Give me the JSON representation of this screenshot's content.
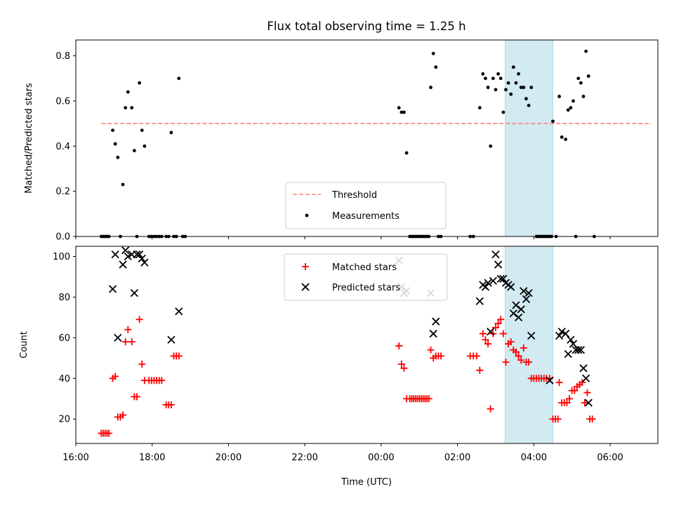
{
  "title": "Flux total observing time = 1.25 h",
  "xlabel": "Time (UTC)",
  "x_tick_labels": [
    "16:00",
    "18:00",
    "20:00",
    "22:00",
    "00:00",
    "02:00",
    "04:00",
    "06:00"
  ],
  "colors": {
    "threshold": "#ff7f7f",
    "measurements": "#000000",
    "matched": "#ff0000",
    "predicted": "#000000",
    "highlight": "#add8e6"
  },
  "chart_data": [
    {
      "type": "scatter",
      "ylabel": "Matched/Predicted stars",
      "ylim": [
        0,
        0.87
      ],
      "y_ticks": [
        0.0,
        0.2,
        0.4,
        0.6,
        0.8
      ],
      "y_tick_labels": [
        "0.0",
        "0.2",
        "0.4",
        "0.6",
        "0.8"
      ],
      "x_range": [
        "16:00",
        "07:15"
      ],
      "highlight_span": [
        "03:15",
        "04:30"
      ],
      "legend_position": "lower-center",
      "threshold": {
        "name": "Threshold",
        "value": 0.5,
        "x": [
          "16:40",
          "07:05"
        ],
        "style": "dashed"
      },
      "series": [
        {
          "name": "Measurements",
          "points": [
            [
              "16:40",
              0
            ],
            [
              "16:43",
              0
            ],
            [
              "16:46",
              0
            ],
            [
              "16:49",
              0
            ],
            [
              "16:52",
              0
            ],
            [
              "16:58",
              0.47
            ],
            [
              "17:02",
              0.41
            ],
            [
              "17:06",
              0.35
            ],
            [
              "17:10",
              0
            ],
            [
              "17:14",
              0.23
            ],
            [
              "17:18",
              0.57
            ],
            [
              "17:22",
              0.64
            ],
            [
              "17:28",
              0.57
            ],
            [
              "17:32",
              0.38
            ],
            [
              "17:36",
              0
            ],
            [
              "17:40",
              0.68
            ],
            [
              "17:44",
              0.47
            ],
            [
              "17:48",
              0.4
            ],
            [
              "17:55",
              0
            ],
            [
              "17:59",
              0
            ],
            [
              "18:03",
              0
            ],
            [
              "18:07",
              0
            ],
            [
              "18:11",
              0
            ],
            [
              "18:15",
              0
            ],
            [
              "18:22",
              0
            ],
            [
              "18:26",
              0
            ],
            [
              "18:30",
              0.46
            ],
            [
              "18:34",
              0
            ],
            [
              "18:38",
              0
            ],
            [
              "18:42",
              0.7
            ],
            [
              "18:48",
              0
            ],
            [
              "18:52",
              0
            ],
            [
              "00:28",
              0.57
            ],
            [
              "00:32",
              0.55
            ],
            [
              "00:36",
              0.55
            ],
            [
              "00:40",
              0.37
            ],
            [
              "00:45",
              0
            ],
            [
              "00:48",
              0
            ],
            [
              "00:51",
              0
            ],
            [
              "00:54",
              0
            ],
            [
              "00:57",
              0
            ],
            [
              "01:00",
              0
            ],
            [
              "01:03",
              0
            ],
            [
              "01:06",
              0
            ],
            [
              "01:09",
              0
            ],
            [
              "01:12",
              0
            ],
            [
              "01:15",
              0
            ],
            [
              "01:18",
              0.66
            ],
            [
              "01:22",
              0.81
            ],
            [
              "01:26",
              0.75
            ],
            [
              "01:30",
              0
            ],
            [
              "01:34",
              0
            ],
            [
              "02:20",
              0
            ],
            [
              "02:25",
              0
            ],
            [
              "02:35",
              0.57
            ],
            [
              "02:40",
              0.72
            ],
            [
              "02:44",
              0.7
            ],
            [
              "02:48",
              0.66
            ],
            [
              "02:52",
              0.4
            ],
            [
              "02:56",
              0.7
            ],
            [
              "03:00",
              0.65
            ],
            [
              "03:04",
              0.72
            ],
            [
              "03:08",
              0.7
            ],
            [
              "03:12",
              0.55
            ],
            [
              "03:16",
              0.65
            ],
            [
              "03:20",
              0.68
            ],
            [
              "03:24",
              0.63
            ],
            [
              "03:28",
              0.75
            ],
            [
              "03:32",
              0.68
            ],
            [
              "03:36",
              0.72
            ],
            [
              "03:40",
              0.66
            ],
            [
              "03:44",
              0.66
            ],
            [
              "03:48",
              0.61
            ],
            [
              "03:52",
              0.58
            ],
            [
              "03:56",
              0.66
            ],
            [
              "04:04",
              0
            ],
            [
              "04:07",
              0
            ],
            [
              "04:10",
              0
            ],
            [
              "04:13",
              0
            ],
            [
              "04:16",
              0
            ],
            [
              "04:19",
              0
            ],
            [
              "04:22",
              0
            ],
            [
              "04:25",
              0
            ],
            [
              "04:28",
              0
            ],
            [
              "04:30",
              0.51
            ],
            [
              "04:35",
              0
            ],
            [
              "04:40",
              0.62
            ],
            [
              "04:44",
              0.44
            ],
            [
              "04:50",
              0.43
            ],
            [
              "04:54",
              0.56
            ],
            [
              "04:58",
              0.57
            ],
            [
              "05:02",
              0.6
            ],
            [
              "05:06",
              0
            ],
            [
              "05:10",
              0.7
            ],
            [
              "05:14",
              0.68
            ],
            [
              "05:18",
              0.62
            ],
            [
              "05:22",
              0.82
            ],
            [
              "05:26",
              0.71
            ],
            [
              "05:35",
              0
            ]
          ]
        }
      ]
    },
    {
      "type": "scatter",
      "ylabel": "Count",
      "ylim": [
        8,
        105
      ],
      "y_ticks": [
        20,
        40,
        60,
        80,
        100
      ],
      "y_tick_labels": [
        "20",
        "40",
        "60",
        "80",
        "100"
      ],
      "x_range": [
        "16:00",
        "07:15"
      ],
      "highlight_span": [
        "03:15",
        "04:30"
      ],
      "legend_position": "upper-center",
      "series": [
        {
          "name": "Matched stars",
          "marker": "+",
          "points": [
            [
              "16:40",
              13
            ],
            [
              "16:43",
              13
            ],
            [
              "16:46",
              13
            ],
            [
              "16:49",
              13
            ],
            [
              "16:52",
              13
            ],
            [
              "16:58",
              40
            ],
            [
              "17:02",
              41
            ],
            [
              "17:06",
              21
            ],
            [
              "17:10",
              21
            ],
            [
              "17:14",
              22
            ],
            [
              "17:18",
              58
            ],
            [
              "17:22",
              64
            ],
            [
              "17:28",
              58
            ],
            [
              "17:32",
              31
            ],
            [
              "17:36",
              31
            ],
            [
              "17:40",
              69
            ],
            [
              "17:44",
              47
            ],
            [
              "17:48",
              39
            ],
            [
              "17:55",
              39
            ],
            [
              "17:59",
              39
            ],
            [
              "18:03",
              39
            ],
            [
              "18:07",
              39
            ],
            [
              "18:11",
              39
            ],
            [
              "18:15",
              39
            ],
            [
              "18:22",
              27
            ],
            [
              "18:26",
              27
            ],
            [
              "18:30",
              27
            ],
            [
              "18:34",
              51
            ],
            [
              "18:38",
              51
            ],
            [
              "18:42",
              51
            ],
            [
              "00:28",
              56
            ],
            [
              "00:32",
              47
            ],
            [
              "00:36",
              45
            ],
            [
              "00:40",
              30
            ],
            [
              "00:45",
              30
            ],
            [
              "00:48",
              30
            ],
            [
              "00:51",
              30
            ],
            [
              "00:54",
              30
            ],
            [
              "00:57",
              30
            ],
            [
              "01:00",
              30
            ],
            [
              "01:03",
              30
            ],
            [
              "01:06",
              30
            ],
            [
              "01:09",
              30
            ],
            [
              "01:12",
              30
            ],
            [
              "01:15",
              30
            ],
            [
              "01:18",
              54
            ],
            [
              "01:22",
              50
            ],
            [
              "01:26",
              51
            ],
            [
              "01:30",
              51
            ],
            [
              "01:34",
              51
            ],
            [
              "02:20",
              51
            ],
            [
              "02:25",
              51
            ],
            [
              "02:30",
              51
            ],
            [
              "02:35",
              44
            ],
            [
              "02:40",
              62
            ],
            [
              "02:44",
              59
            ],
            [
              "02:48",
              57
            ],
            [
              "02:52",
              25
            ],
            [
              "02:56",
              62
            ],
            [
              "03:00",
              65
            ],
            [
              "03:04",
              67
            ],
            [
              "03:08",
              69
            ],
            [
              "03:12",
              62
            ],
            [
              "03:16",
              48
            ],
            [
              "03:20",
              57
            ],
            [
              "03:24",
              58
            ],
            [
              "03:28",
              54
            ],
            [
              "03:32",
              53
            ],
            [
              "03:36",
              51
            ],
            [
              "03:40",
              49
            ],
            [
              "03:44",
              55
            ],
            [
              "03:48",
              48
            ],
            [
              "03:52",
              48
            ],
            [
              "03:56",
              40
            ],
            [
              "04:00",
              40
            ],
            [
              "04:04",
              40
            ],
            [
              "04:08",
              40
            ],
            [
              "04:12",
              40
            ],
            [
              "04:16",
              40
            ],
            [
              "04:20",
              40
            ],
            [
              "04:25",
              40
            ],
            [
              "04:30",
              20
            ],
            [
              "04:34",
              20
            ],
            [
              "04:38",
              20
            ],
            [
              "04:40",
              38
            ],
            [
              "04:44",
              28
            ],
            [
              "04:48",
              28
            ],
            [
              "04:52",
              28
            ],
            [
              "04:56",
              30
            ],
            [
              "05:00",
              34
            ],
            [
              "05:04",
              34
            ],
            [
              "05:08",
              36
            ],
            [
              "05:12",
              37
            ],
            [
              "05:16",
              38
            ],
            [
              "05:20",
              28
            ],
            [
              "05:24",
              33
            ],
            [
              "05:28",
              20
            ],
            [
              "05:32",
              20
            ]
          ]
        },
        {
          "name": "Predicted stars",
          "marker": "x",
          "points": [
            [
              "16:58",
              84
            ],
            [
              "17:02",
              101
            ],
            [
              "17:06",
              60
            ],
            [
              "17:14",
              96
            ],
            [
              "17:18",
              103
            ],
            [
              "17:22",
              100
            ],
            [
              "17:28",
              101
            ],
            [
              "17:32",
              82
            ],
            [
              "17:36",
              101
            ],
            [
              "17:40",
              101
            ],
            [
              "17:44",
              99
            ],
            [
              "17:48",
              97
            ],
            [
              "18:30",
              59
            ],
            [
              "18:42",
              73
            ],
            [
              "00:28",
              98
            ],
            [
              "00:32",
              85
            ],
            [
              "00:36",
              82
            ],
            [
              "00:40",
              83
            ],
            [
              "01:18",
              82
            ],
            [
              "01:22",
              62
            ],
            [
              "01:26",
              68
            ],
            [
              "02:35",
              78
            ],
            [
              "02:40",
              86
            ],
            [
              "02:44",
              85
            ],
            [
              "02:48",
              87
            ],
            [
              "02:52",
              63
            ],
            [
              "02:56",
              88
            ],
            [
              "03:00",
              101
            ],
            [
              "03:04",
              96
            ],
            [
              "03:08",
              89
            ],
            [
              "03:12",
              89
            ],
            [
              "03:16",
              87
            ],
            [
              "03:20",
              86
            ],
            [
              "03:24",
              85
            ],
            [
              "03:28",
              72
            ],
            [
              "03:32",
              76
            ],
            [
              "03:36",
              70
            ],
            [
              "03:40",
              74
            ],
            [
              "03:44",
              83
            ],
            [
              "03:48",
              79
            ],
            [
              "03:52",
              82
            ],
            [
              "03:56",
              61
            ],
            [
              "04:25",
              39
            ],
            [
              "04:40",
              61
            ],
            [
              "04:44",
              63
            ],
            [
              "04:50",
              62
            ],
            [
              "04:54",
              52
            ],
            [
              "04:58",
              59
            ],
            [
              "05:02",
              57
            ],
            [
              "05:06",
              54
            ],
            [
              "05:10",
              54
            ],
            [
              "05:14",
              54
            ],
            [
              "05:18",
              45
            ],
            [
              "05:22",
              40
            ],
            [
              "05:26",
              28
            ]
          ]
        }
      ]
    }
  ]
}
